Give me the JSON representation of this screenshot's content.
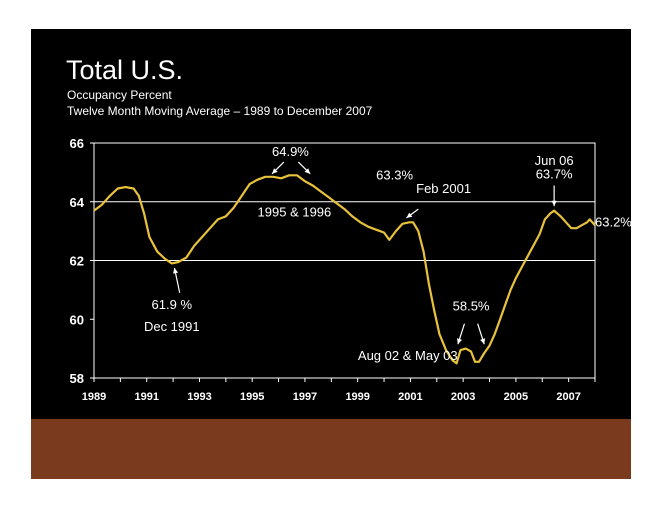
{
  "slide": {
    "title": "Total U.S.",
    "subtitle_line1": "Occupancy Percent",
    "subtitle_line2": "Twelve Month Moving Average – 1989 to December 2007",
    "background_color": "#000000",
    "footer_color": "#7a3a1e"
  },
  "chart_data": {
    "type": "line",
    "title": "Total U.S.",
    "subtitle": "Occupancy Percent – Twelve Month Moving Average – 1989 to December 2007",
    "xlabel": "",
    "ylabel": "",
    "xlim": [
      1989,
      2008
    ],
    "ylim": [
      58,
      66
    ],
    "y_ticks": [
      "58",
      "60",
      "62",
      "64",
      "66"
    ],
    "x_ticks": [
      "1989",
      "1991",
      "1993",
      "1995",
      "1997",
      "1999",
      "2001",
      "2003",
      "2005",
      "2007"
    ],
    "grid": "horizontal gridlines at 62 and 64",
    "line_color": "#e8c23a",
    "series": [
      {
        "name": "Occupancy Percent (12-month moving average)",
        "points": [
          [
            1989.0,
            63.7
          ],
          [
            1989.3,
            63.9
          ],
          [
            1989.6,
            64.2
          ],
          [
            1989.9,
            64.45
          ],
          [
            1990.2,
            64.5
          ],
          [
            1990.5,
            64.45
          ],
          [
            1990.7,
            64.2
          ],
          [
            1990.9,
            63.6
          ],
          [
            1991.1,
            62.8
          ],
          [
            1991.4,
            62.3
          ],
          [
            1991.7,
            62.05
          ],
          [
            1991.95,
            61.9
          ],
          [
            1992.2,
            61.95
          ],
          [
            1992.5,
            62.1
          ],
          [
            1992.8,
            62.5
          ],
          [
            1993.1,
            62.8
          ],
          [
            1993.4,
            63.1
          ],
          [
            1993.7,
            63.4
          ],
          [
            1994.0,
            63.5
          ],
          [
            1994.3,
            63.8
          ],
          [
            1994.6,
            64.2
          ],
          [
            1994.9,
            64.6
          ],
          [
            1995.2,
            64.75
          ],
          [
            1995.5,
            64.85
          ],
          [
            1995.8,
            64.85
          ],
          [
            1996.1,
            64.8
          ],
          [
            1996.4,
            64.9
          ],
          [
            1996.7,
            64.9
          ],
          [
            1997.0,
            64.7
          ],
          [
            1997.3,
            64.55
          ],
          [
            1997.6,
            64.35
          ],
          [
            1997.9,
            64.15
          ],
          [
            1998.2,
            63.95
          ],
          [
            1998.5,
            63.75
          ],
          [
            1998.8,
            63.5
          ],
          [
            1999.1,
            63.3
          ],
          [
            1999.4,
            63.15
          ],
          [
            1999.7,
            63.05
          ],
          [
            2000.0,
            62.95
          ],
          [
            2000.2,
            62.7
          ],
          [
            2000.45,
            63.0
          ],
          [
            2000.7,
            63.25
          ],
          [
            2000.95,
            63.3
          ],
          [
            2001.1,
            63.3
          ],
          [
            2001.3,
            63.0
          ],
          [
            2001.5,
            62.3
          ],
          [
            2001.7,
            61.2
          ],
          [
            2001.9,
            60.3
          ],
          [
            2002.1,
            59.5
          ],
          [
            2002.35,
            58.95
          ],
          [
            2002.6,
            58.6
          ],
          [
            2002.75,
            58.5
          ],
          [
            2002.9,
            58.95
          ],
          [
            2003.1,
            59.0
          ],
          [
            2003.3,
            58.9
          ],
          [
            2003.45,
            58.55
          ],
          [
            2003.6,
            58.55
          ],
          [
            2003.8,
            58.85
          ],
          [
            2004.0,
            59.1
          ],
          [
            2004.2,
            59.5
          ],
          [
            2004.4,
            60.0
          ],
          [
            2004.6,
            60.5
          ],
          [
            2004.8,
            61.0
          ],
          [
            2005.0,
            61.4
          ],
          [
            2005.3,
            61.9
          ],
          [
            2005.6,
            62.4
          ],
          [
            2005.9,
            62.9
          ],
          [
            2006.1,
            63.4
          ],
          [
            2006.3,
            63.6
          ],
          [
            2006.45,
            63.7
          ],
          [
            2006.7,
            63.5
          ],
          [
            2006.9,
            63.3
          ],
          [
            2007.1,
            63.1
          ],
          [
            2007.3,
            63.1
          ],
          [
            2007.5,
            63.2
          ],
          [
            2007.7,
            63.3
          ],
          [
            2007.8,
            63.4
          ],
          [
            2008.0,
            63.2
          ]
        ]
      }
    ],
    "annotations": [
      {
        "text": "64.9%"
      },
      {
        "text": "1995 & 1996"
      },
      {
        "text": "63.3%"
      },
      {
        "text": "Feb 2001"
      },
      {
        "text": "Jun 06"
      },
      {
        "text": "63.7%"
      },
      {
        "text": "63.2%"
      },
      {
        "text": "61.9 %"
      },
      {
        "text": "Dec 1991"
      },
      {
        "text": "58.5%"
      },
      {
        "text": "Aug 02 & May 03"
      }
    ]
  }
}
